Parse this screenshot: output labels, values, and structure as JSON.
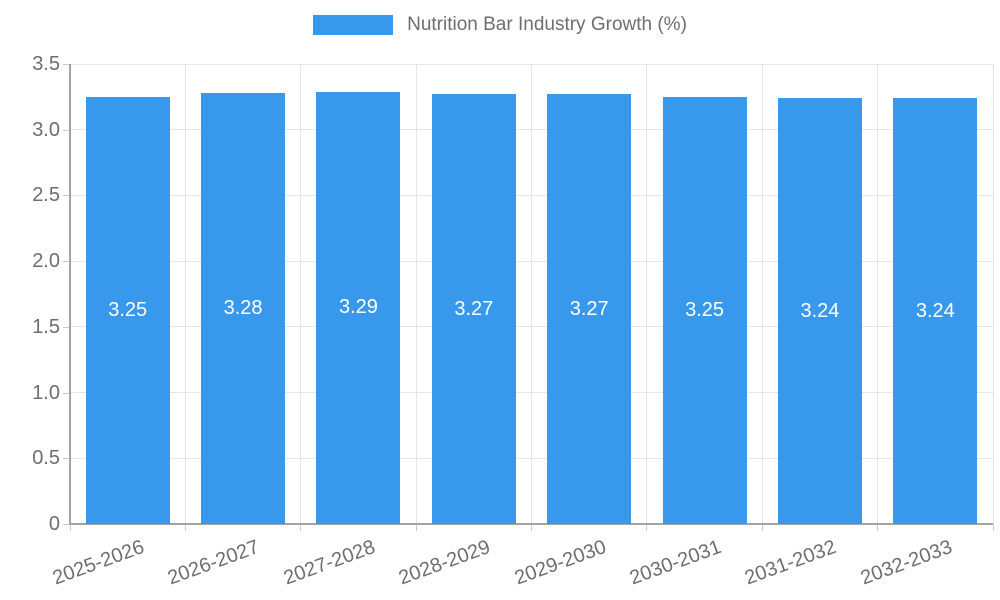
{
  "legend": {
    "label": "Nutrition Bar Industry Growth (%)",
    "position": "top"
  },
  "colors": {
    "bar": "#3898EC",
    "grid": "#e5e5e5",
    "axis": "#a3a3a3",
    "tick": "#c9c9c9",
    "text": "#6e6e6e",
    "value_label": "#ffffff",
    "background": "#ffffff"
  },
  "chart_data": {
    "type": "bar",
    "title": "Nutrition Bar Industry Growth (%)",
    "categories": [
      "2025-2026",
      "2026-2027",
      "2027-2028",
      "2028-2029",
      "2029-2030",
      "2030-2031",
      "2031-2032",
      "2032-2033"
    ],
    "values": [
      3.25,
      3.28,
      3.29,
      3.27,
      3.27,
      3.25,
      3.24,
      3.24
    ],
    "value_labels": [
      "3.25",
      "3.28",
      "3.29",
      "3.27",
      "3.27",
      "3.25",
      "3.24",
      "3.24"
    ],
    "xlabel": "",
    "ylabel": "",
    "ylim": [
      0,
      3.5
    ],
    "yticks": [
      0,
      0.5,
      1.0,
      1.5,
      2.0,
      2.5,
      3.0,
      3.5
    ],
    "ytick_labels": [
      "0",
      "0.5",
      "1.0",
      "1.5",
      "2.0",
      "2.5",
      "3.0",
      "3.5"
    ],
    "grid": true,
    "legend_position": "top",
    "bar_label_position": "center",
    "xtick_rotation_deg": -20
  }
}
